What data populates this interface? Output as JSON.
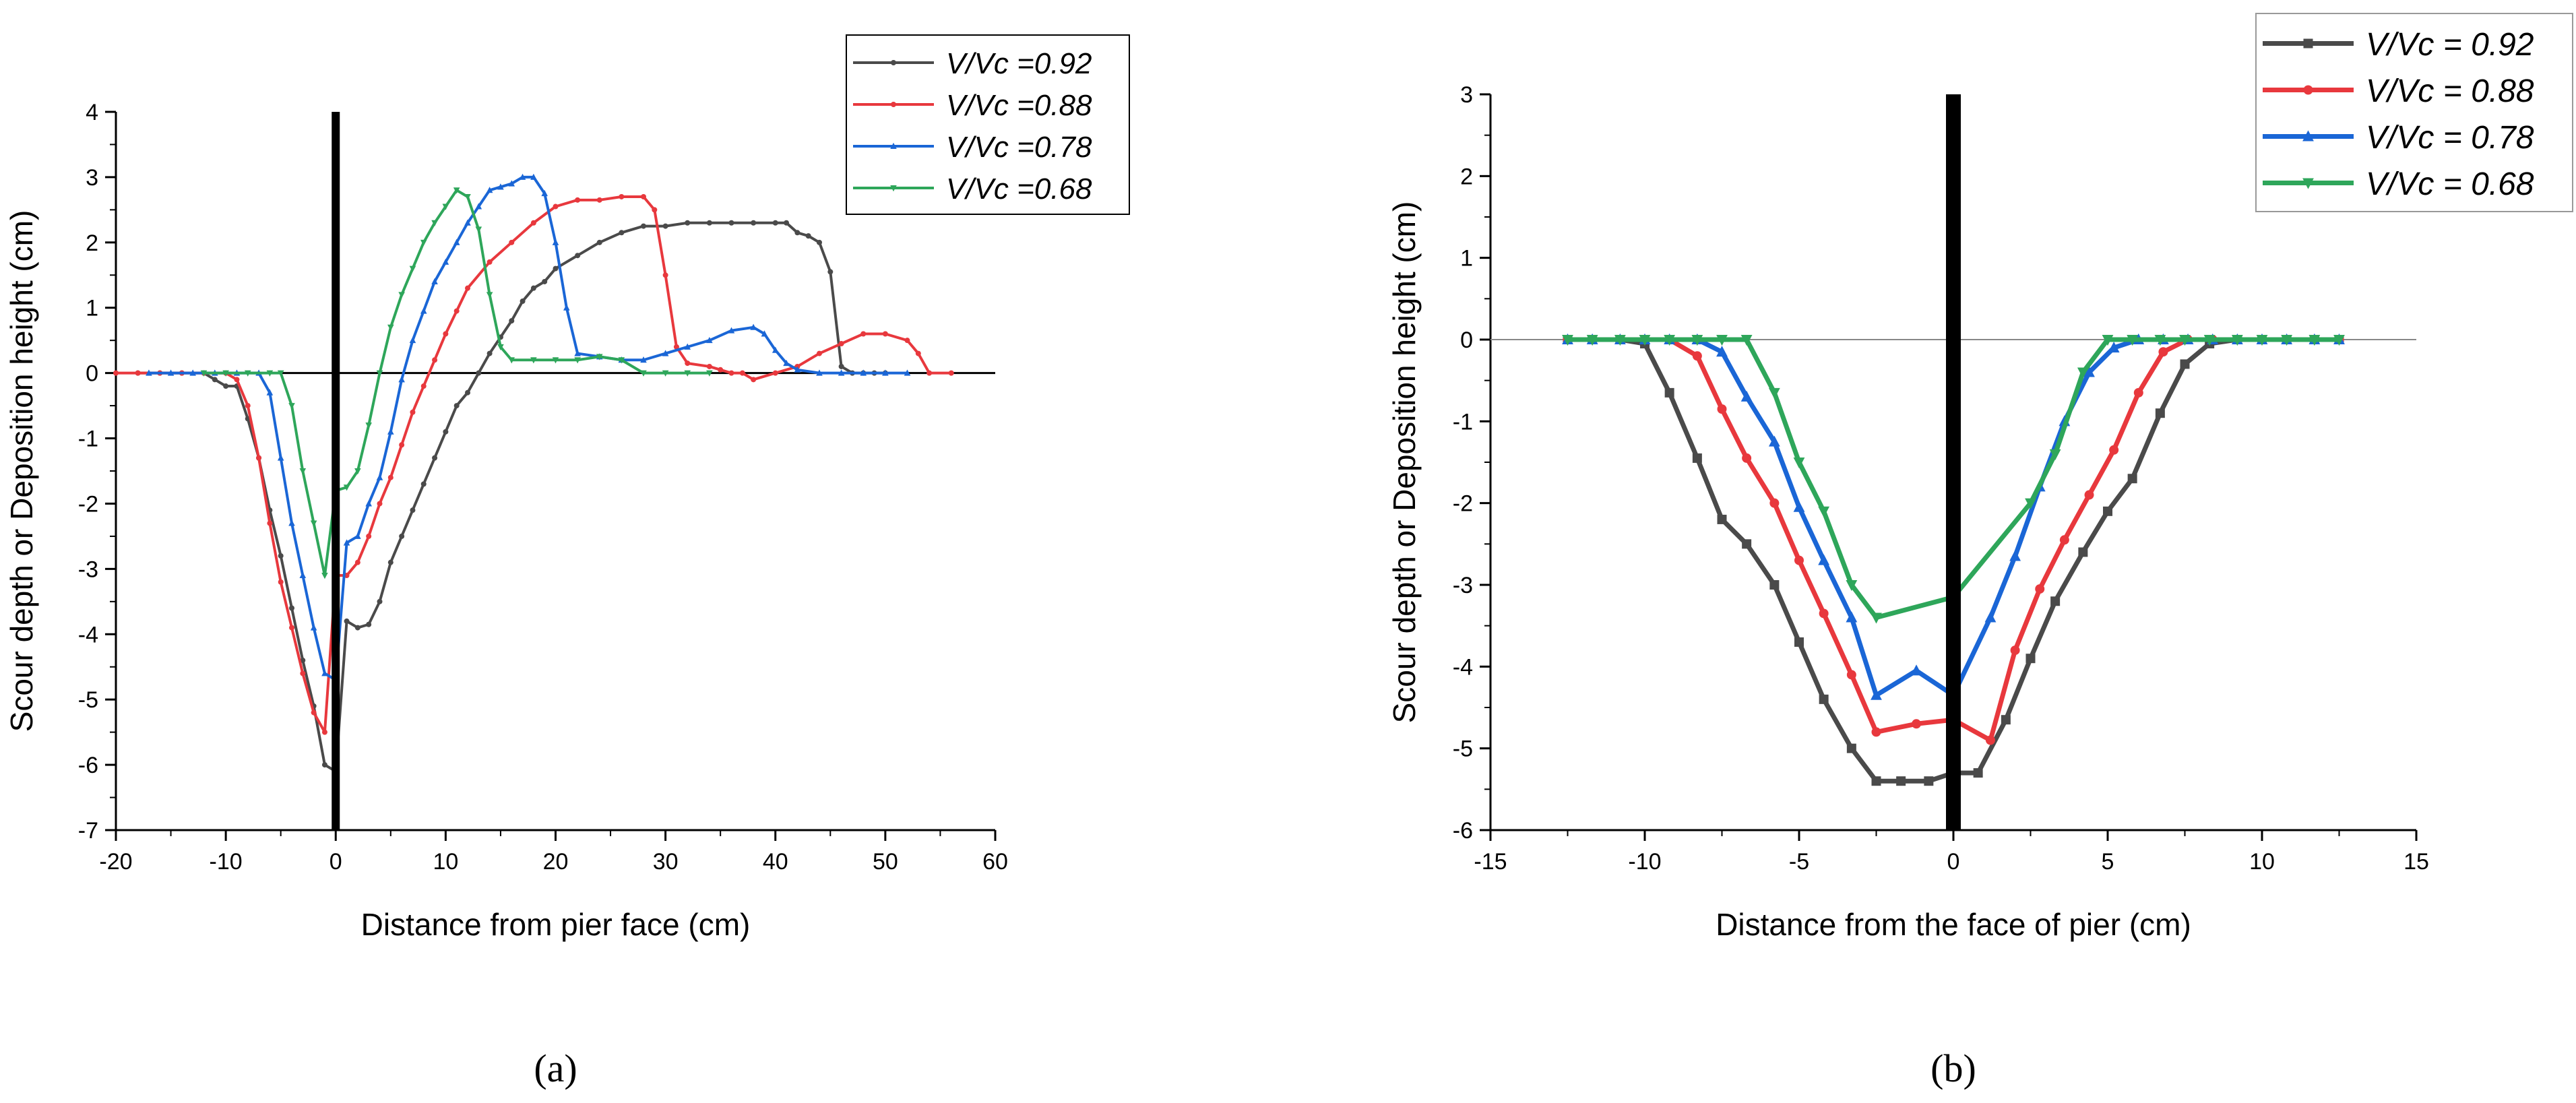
{
  "chart_data": [
    {
      "type": "line",
      "panel_label": "(a)",
      "panel_letter": "a",
      "xlabel": "Distance from  pier face (cm)",
      "ylabel": "Scour depth or Deposition height (cm)",
      "xlim": [
        -20,
        60
      ],
      "ylim": [
        -7,
        4
      ],
      "xticks": [
        -20,
        -10,
        0,
        10,
        20,
        30,
        40,
        50,
        60
      ],
      "yticks": [
        -7,
        -6,
        -5,
        -4,
        -3,
        -2,
        -1,
        0,
        1,
        2,
        3,
        4
      ],
      "zero_line": true,
      "pier_line": {
        "x": 0,
        "y_from": -7,
        "y_to": 4
      },
      "legend_position": "top-right",
      "series": [
        {
          "name": "V/Vc =0.92",
          "color": "#4a4a4a",
          "marker": "dot",
          "x": [
            -18,
            -16,
            -14,
            -12,
            -11,
            -10,
            -9,
            -8,
            -7,
            -6,
            -5,
            -4,
            -3,
            -2,
            -1,
            0,
            1,
            2,
            3,
            4,
            5,
            6,
            7,
            8,
            9,
            10,
            11,
            12,
            13,
            14,
            15,
            16,
            17,
            18,
            19,
            20,
            22,
            24,
            26,
            28,
            30,
            32,
            34,
            36,
            38,
            40,
            41,
            42,
            43,
            44,
            45,
            46,
            47,
            48,
            49,
            50
          ],
          "y": [
            0,
            0,
            0,
            0,
            -0.1,
            -0.2,
            -0.2,
            -0.7,
            -1.3,
            -2.1,
            -2.8,
            -3.6,
            -4.4,
            -5.1,
            -6.0,
            -6.1,
            -3.8,
            -3.9,
            -3.85,
            -3.5,
            -2.9,
            -2.5,
            -2.1,
            -1.7,
            -1.3,
            -0.9,
            -0.5,
            -0.3,
            0.0,
            0.3,
            0.55,
            0.8,
            1.1,
            1.3,
            1.4,
            1.6,
            1.8,
            2.0,
            2.15,
            2.25,
            2.25,
            2.3,
            2.3,
            2.3,
            2.3,
            2.3,
            2.3,
            2.15,
            2.1,
            2.0,
            1.55,
            0.1,
            0.0,
            0.0,
            0.0,
            0.0
          ]
        },
        {
          "name": "V/Vc =0.88",
          "color": "#e8383d",
          "marker": "dot",
          "x": [
            -20,
            -18,
            -16,
            -14,
            -12,
            -10,
            -9,
            -8,
            -7,
            -6,
            -5,
            -4,
            -3,
            -2,
            -1,
            0,
            1,
            2,
            3,
            4,
            5,
            6,
            7,
            8,
            9,
            10,
            11,
            12,
            14,
            16,
            18,
            20,
            22,
            24,
            26,
            28,
            29,
            30,
            31,
            32,
            34,
            35,
            36,
            37,
            38,
            40,
            42,
            44,
            46,
            48,
            50,
            52,
            53,
            54,
            56
          ],
          "y": [
            0,
            0,
            0,
            0,
            0,
            0,
            -0.1,
            -0.5,
            -1.3,
            -2.3,
            -3.2,
            -3.9,
            -4.6,
            -5.2,
            -5.5,
            -3.1,
            -3.1,
            -2.9,
            -2.5,
            -2.0,
            -1.6,
            -1.1,
            -0.6,
            -0.2,
            0.2,
            0.6,
            0.95,
            1.3,
            1.7,
            2.0,
            2.3,
            2.55,
            2.65,
            2.65,
            2.7,
            2.7,
            2.5,
            1.5,
            0.4,
            0.15,
            0.1,
            0.05,
            0.0,
            0.0,
            -0.1,
            0.0,
            0.1,
            0.3,
            0.45,
            0.6,
            0.6,
            0.5,
            0.3,
            0.0,
            0.0
          ]
        },
        {
          "name": "V/Vc =0.78",
          "color": "#1a66d6",
          "marker": "triangle",
          "x": [
            -17,
            -15,
            -13,
            -11,
            -9,
            -7,
            -6,
            -5,
            -4,
            -3,
            -2,
            -1,
            0,
            1,
            2,
            3,
            4,
            5,
            6,
            7,
            8,
            9,
            10,
            11,
            12,
            13,
            14,
            15,
            16,
            17,
            18,
            19,
            20,
            21,
            22,
            24,
            26,
            28,
            30,
            32,
            34,
            36,
            38,
            39,
            40,
            41,
            42,
            44,
            46,
            48,
            50,
            52
          ],
          "y": [
            0,
            0,
            0,
            0,
            0,
            0,
            -0.3,
            -1.3,
            -2.3,
            -3.1,
            -3.9,
            -4.6,
            -4.7,
            -2.6,
            -2.5,
            -2.0,
            -1.6,
            -0.9,
            -0.1,
            0.5,
            0.95,
            1.4,
            1.7,
            2.0,
            2.3,
            2.55,
            2.8,
            2.85,
            2.9,
            3.0,
            3.0,
            2.75,
            2.0,
            1.0,
            0.3,
            0.25,
            0.2,
            0.2,
            0.3,
            0.4,
            0.5,
            0.65,
            0.7,
            0.6,
            0.35,
            0.15,
            0.05,
            0.0,
            0.0,
            0.0,
            0.0,
            0.0
          ]
        },
        {
          "name": "V/Vc =0.68",
          "color": "#2ea65a",
          "marker": "triangle-down",
          "x": [
            -12,
            -10,
            -8,
            -6,
            -5,
            -4,
            -3,
            -2,
            -1,
            0,
            1,
            2,
            3,
            4,
            5,
            6,
            7,
            8,
            9,
            10,
            11,
            12,
            13,
            14,
            15,
            16,
            18,
            20,
            22,
            24,
            26,
            28,
            30,
            32,
            34
          ],
          "y": [
            0,
            0,
            0,
            0,
            0,
            -0.5,
            -1.5,
            -2.3,
            -3.1,
            -1.8,
            -1.75,
            -1.5,
            -0.8,
            0.0,
            0.7,
            1.2,
            1.6,
            2.0,
            2.3,
            2.55,
            2.8,
            2.7,
            2.2,
            1.2,
            0.4,
            0.2,
            0.2,
            0.2,
            0.2,
            0.25,
            0.2,
            0.0,
            0.0,
            0.0,
            0.0
          ]
        }
      ]
    },
    {
      "type": "line",
      "panel_label": "(b)",
      "panel_letter": "b",
      "xlabel": "Distance from the face of pier (cm)",
      "ylabel": "Scour depth or Deposition height (cm)",
      "xlim": [
        -15,
        15
      ],
      "ylim": [
        -6,
        3
      ],
      "xticks": [
        -15,
        -10,
        -5,
        0,
        5,
        10,
        15
      ],
      "yticks": [
        -6,
        -5,
        -4,
        -3,
        -2,
        -1,
        0,
        1,
        2,
        3
      ],
      "zero_line": true,
      "pier_line": {
        "x": 0,
        "y_from": -6,
        "y_to": 3
      },
      "legend_position": "top-right",
      "series": [
        {
          "name": "V/Vc = 0.92",
          "color": "#4a4a4a",
          "marker": "square",
          "x": [
            -12.5,
            -11.7,
            -10.8,
            -10,
            -9.2,
            -8.3,
            -7.5,
            -6.7,
            -5.8,
            -5,
            -4.2,
            -3.3,
            -2.5,
            -1.7,
            -0.8,
            0,
            0.8,
            1.7,
            2.5,
            3.3,
            4.2,
            5,
            5.8,
            6.7,
            7.5,
            8.3,
            9.2,
            10,
            10.8,
            11.7,
            12.5
          ],
          "y": [
            0,
            0,
            0,
            -0.05,
            -0.65,
            -1.45,
            -2.2,
            -2.5,
            -3.0,
            -3.7,
            -4.4,
            -5.0,
            -5.4,
            -5.4,
            -5.4,
            -5.3,
            -5.3,
            -4.65,
            -3.9,
            -3.2,
            -2.6,
            -2.1,
            -1.7,
            -0.9,
            -0.3,
            -0.05,
            0,
            0,
            0,
            0,
            0
          ]
        },
        {
          "name": "V/Vc = 0.88",
          "color": "#e8383d",
          "marker": "dot",
          "x": [
            -12.5,
            -11.7,
            -10.8,
            -10,
            -9.2,
            -8.3,
            -7.5,
            -6.7,
            -5.8,
            -5,
            -4.2,
            -3.3,
            -2.5,
            -1.2,
            0,
            1.2,
            2,
            2.8,
            3.6,
            4.4,
            5.2,
            6,
            6.8,
            7.6,
            8.4,
            9.2,
            10,
            10.8,
            11.7,
            12.5
          ],
          "y": [
            0,
            0,
            0,
            0,
            0,
            -0.2,
            -0.85,
            -1.45,
            -2.0,
            -2.7,
            -3.35,
            -4.1,
            -4.8,
            -4.7,
            -4.65,
            -4.9,
            -3.8,
            -3.05,
            -2.45,
            -1.9,
            -1.35,
            -0.65,
            -0.15,
            0,
            0,
            0,
            0,
            0,
            0,
            0
          ]
        },
        {
          "name": "V/Vc = 0.78",
          "color": "#1a66d6",
          "marker": "triangle",
          "x": [
            -12.5,
            -11.7,
            -10.8,
            -10,
            -9.2,
            -8.3,
            -7.5,
            -6.7,
            -5.8,
            -5,
            -4.2,
            -3.3,
            -2.5,
            -1.2,
            0,
            1.2,
            2,
            2.8,
            3.6,
            4.4,
            5.2,
            6,
            6.8,
            7.6,
            8.4,
            9.2,
            10,
            10.8,
            11.7,
            12.5
          ],
          "y": [
            0,
            0,
            0,
            0,
            0,
            0,
            -0.15,
            -0.7,
            -1.25,
            -2.05,
            -2.7,
            -3.4,
            -4.35,
            -4.05,
            -4.35,
            -3.4,
            -2.65,
            -1.8,
            -1.0,
            -0.4,
            -0.1,
            0,
            0,
            0,
            0,
            0,
            0,
            0,
            0,
            0
          ]
        },
        {
          "name": "V/Vc = 0.68",
          "color": "#2ea65a",
          "marker": "triangle-down",
          "x": [
            -12.5,
            -11.7,
            -10.8,
            -10,
            -9.2,
            -8.3,
            -7.5,
            -6.7,
            -5.8,
            -5,
            -4.2,
            -3.3,
            -2.5,
            0,
            2.5,
            3.3,
            4.2,
            5,
            5.8,
            6.7,
            7.5,
            8.3,
            9.2,
            10,
            10.8,
            11.7,
            12.5
          ],
          "y": [
            0,
            0,
            0,
            0,
            0,
            0,
            0,
            0,
            -0.65,
            -1.5,
            -2.1,
            -3.0,
            -3.4,
            -3.15,
            -2.0,
            -1.4,
            -0.4,
            0,
            0,
            0,
            0,
            0,
            0,
            0,
            0,
            0,
            0
          ]
        }
      ]
    }
  ]
}
